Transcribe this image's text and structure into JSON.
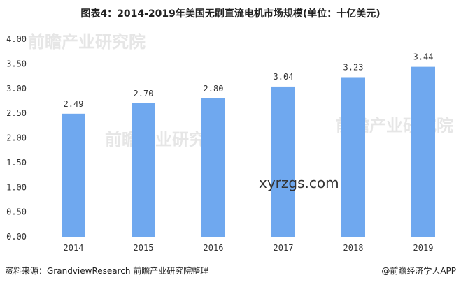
{
  "chart_data": {
    "type": "bar",
    "title": "图表4：2014-2019年美国无刷直流电机市场规模(单位：十亿美元)",
    "categories": [
      "2014",
      "2015",
      "2016",
      "2017",
      "2018",
      "2019"
    ],
    "values": [
      2.49,
      2.7,
      2.8,
      3.04,
      3.23,
      3.44
    ],
    "data_labels": [
      "2.49",
      "2.70",
      "2.80",
      "3.04",
      "3.23",
      "3.44"
    ],
    "yticks": [
      "0.00",
      "0.50",
      "1.00",
      "1.50",
      "2.00",
      "2.50",
      "3.00",
      "3.50",
      "4.00"
    ],
    "ylim": [
      0,
      4
    ],
    "grid": false,
    "bar_color": "#6fa8ef"
  },
  "source": "资料来源：GrandviewResearch 前瞻产业研究院整理",
  "credit": "@前瞻经济学人APP",
  "watermark": "xyrzgs.com",
  "brand_watermark": "前瞻产业研究院"
}
